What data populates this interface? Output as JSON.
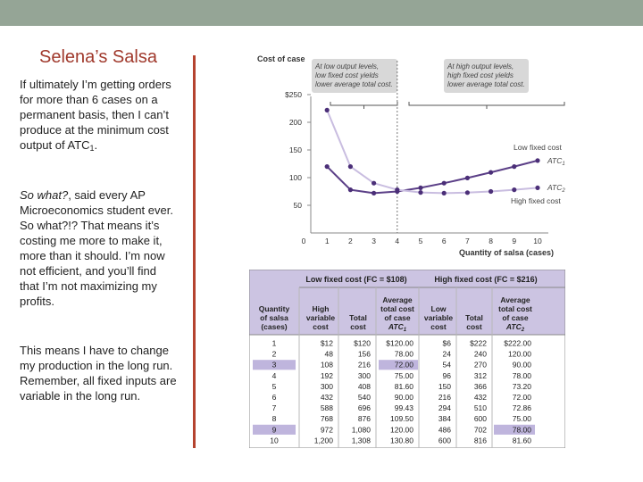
{
  "slide": {
    "title": "Selena’s Salsa",
    "para1_pre": "If ultimately I’m getting orders for more than 6 cases on a permanent basis, then I can’t produce at the minimum cost output of ATC",
    "para1_sub": "1",
    "para1_post": ".",
    "para2_italic": "So what?",
    "para2_rest": ", said every AP Microeconomics student ever.  So what?!?  That means it’s costing me more to make it, more than it should.  I’m now not efficient, and you’ll find that I’m not maximizing my profits.",
    "para3": "This means I have to change my production in the long run.  Remember, all fixed inputs are variable in the long run."
  },
  "colors": {
    "topbar": "#95a596",
    "title": "#a0392c",
    "divider": "#b5432f",
    "low_fixed_curve": "#5b3f87",
    "high_fixed_curve": "#c9bde0",
    "callout_bg": "#d8d8d8",
    "table_header_bg": "#ccc4e2",
    "table_highlight": "#bfb5dd"
  },
  "chart_data": {
    "type": "line",
    "ylabel": "Cost of case",
    "xlabel": "Quantity of salsa (cases)",
    "xlim": [
      0,
      10
    ],
    "ylim": [
      0,
      250
    ],
    "x_ticks": [
      "0",
      "1",
      "2",
      "3",
      "4",
      "5",
      "6",
      "7",
      "8",
      "9",
      "10"
    ],
    "y_ticks": [
      "$250",
      "200",
      "150",
      "100",
      "50"
    ],
    "y_tick_values": [
      250,
      200,
      150,
      100,
      50
    ],
    "vline_x": 4,
    "callout_left": [
      "At low output levels,",
      "low fixed cost yields",
      "lower average total cost."
    ],
    "callout_right": [
      "At high output levels,",
      "high fixed cost yields",
      "lower average total cost."
    ],
    "series": [
      {
        "name": "Low fixed cost",
        "label_sub": "ATC",
        "label_sub_idx": "1",
        "x": [
          1,
          2,
          3,
          4,
          5,
          6,
          7,
          8,
          9,
          10
        ],
        "values": [
          120.0,
          78.0,
          72.0,
          75.0,
          81.6,
          90.0,
          99.43,
          109.5,
          120.0,
          130.8
        ]
      },
      {
        "name": "High fixed cost",
        "label_sub": "ATC",
        "label_sub_idx": "2",
        "x": [
          1,
          2,
          3,
          4,
          5,
          6,
          7,
          8,
          9,
          10
        ],
        "values": [
          222.0,
          120.0,
          90.0,
          78.0,
          73.2,
          72.0,
          72.86,
          75.0,
          78.0,
          81.6
        ]
      }
    ]
  },
  "table": {
    "low_header": "Low fixed cost (FC = $108)",
    "high_header": "High fixed cost (FC = $216)",
    "columns": [
      [
        "Quantity",
        "of salsa",
        "(cases)"
      ],
      [
        "High",
        "variable",
        "cost"
      ],
      [
        "Total",
        "cost"
      ],
      [
        "Average",
        "total cost",
        "of case",
        "ATC1"
      ],
      [
        "Low",
        "variable",
        "cost"
      ],
      [
        "Total",
        "cost"
      ],
      [
        "Average",
        "total cost",
        "of case",
        "ATC2"
      ]
    ],
    "rows": [
      [
        "1",
        "$12",
        "$120",
        "$120.00",
        "$6",
        "$222",
        "$222.00"
      ],
      [
        "2",
        "48",
        "156",
        "78.00",
        "24",
        "240",
        "120.00"
      ],
      [
        "3",
        "108",
        "216",
        "72.00",
        "54",
        "270",
        "90.00"
      ],
      [
        "4",
        "192",
        "300",
        "75.00",
        "96",
        "312",
        "78.00"
      ],
      [
        "5",
        "300",
        "408",
        "81.60",
        "150",
        "366",
        "73.20"
      ],
      [
        "6",
        "432",
        "540",
        "90.00",
        "216",
        "432",
        "72.00"
      ],
      [
        "7",
        "588",
        "696",
        "99.43",
        "294",
        "510",
        "72.86"
      ],
      [
        "8",
        "768",
        "876",
        "109.50",
        "384",
        "600",
        "75.00"
      ],
      [
        "9",
        "972",
        "1,080",
        "120.00",
        "486",
        "702",
        "78.00"
      ],
      [
        "10",
        "1,200",
        "1,308",
        "130.80",
        "600",
        "816",
        "81.60"
      ]
    ],
    "highlight_rows": [
      2,
      8
    ],
    "highlight_low_atc_row": 2,
    "highlight_high_atc_row": 8
  }
}
